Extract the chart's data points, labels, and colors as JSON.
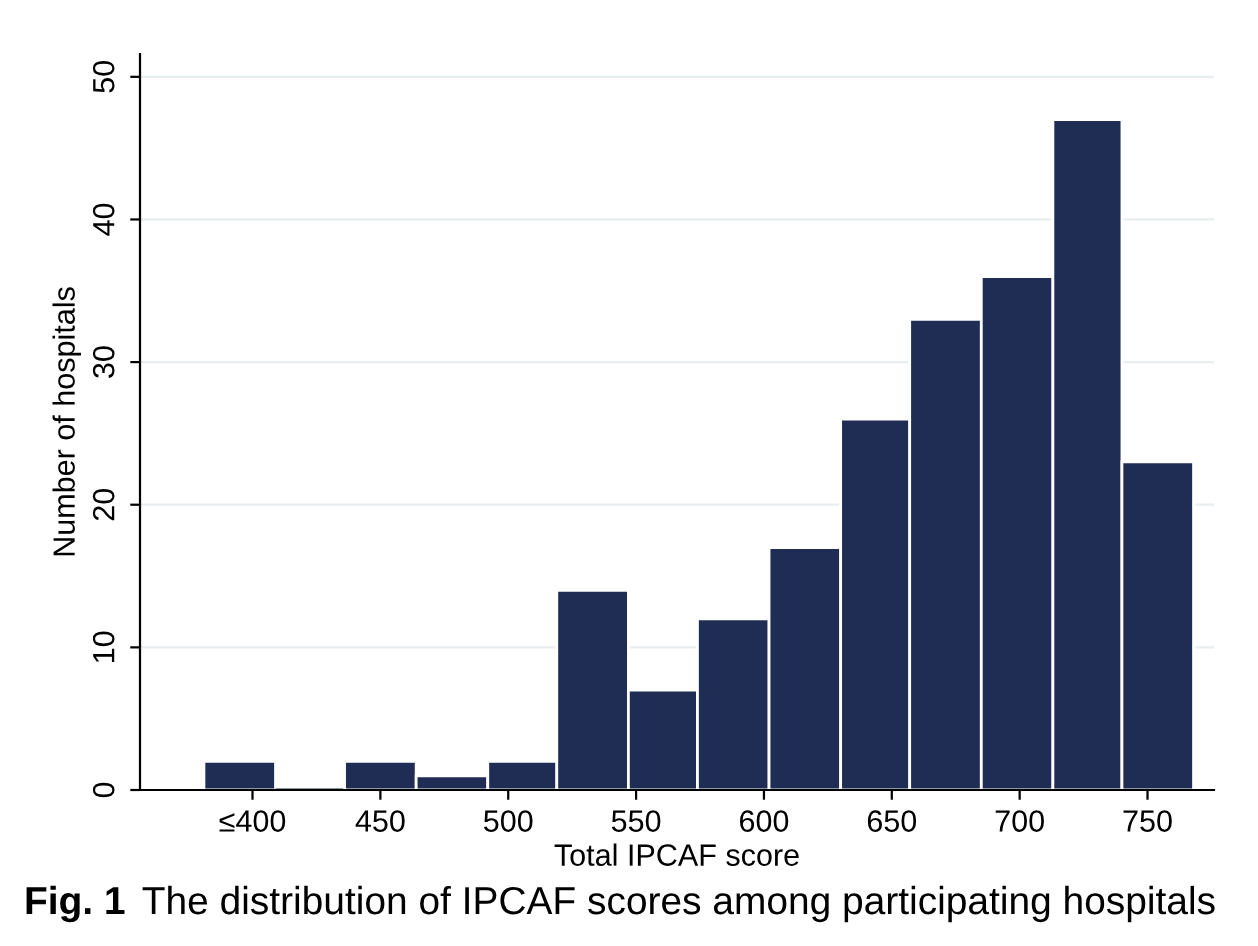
{
  "chart_data": {
    "type": "histogram",
    "xlabel": "Total IPCAF score",
    "ylabel": "Number of hospitals",
    "bins": [
      381,
      409,
      436,
      464,
      492,
      519,
      547,
      574,
      602,
      630,
      657,
      685,
      713,
      740,
      768
    ],
    "values": [
      2,
      0,
      2,
      1,
      2,
      14,
      7,
      12,
      17,
      26,
      33,
      36,
      47,
      23
    ],
    "color": "#1f2d55",
    "xlim": [
      356,
      776
    ],
    "ylim": [
      0,
      51.6
    ],
    "xticks": [
      {
        "value": 400,
        "label": "≤400"
      },
      450,
      500,
      550,
      600,
      650,
      700,
      750
    ],
    "yticks": [
      0,
      10,
      20,
      30,
      40,
      50
    ],
    "grid": "y",
    "annotations": [
      "Fig. 1",
      "The distribution of IPCAF scores among participating hospitals"
    ]
  }
}
